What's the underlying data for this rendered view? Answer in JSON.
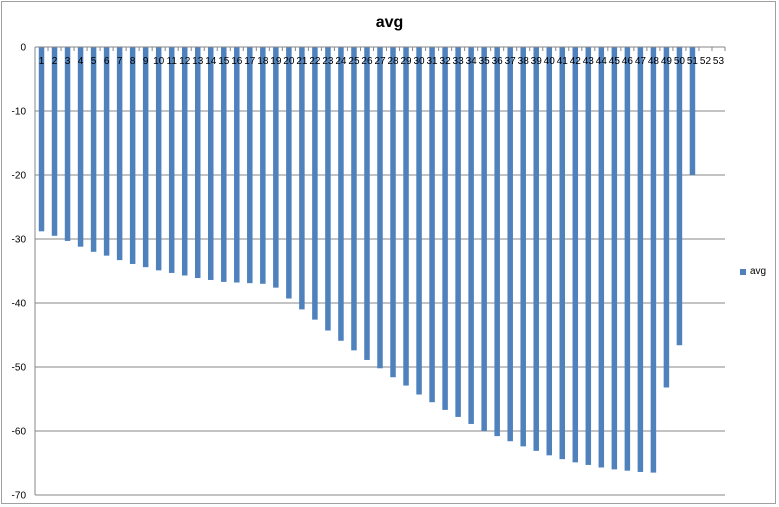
{
  "chart_data": {
    "type": "bar",
    "title": "avg",
    "categories": [
      "1",
      "2",
      "3",
      "4",
      "5",
      "6",
      "7",
      "8",
      "9",
      "10",
      "11",
      "12",
      "13",
      "14",
      "15",
      "16",
      "17",
      "18",
      "19",
      "20",
      "21",
      "22",
      "23",
      "24",
      "25",
      "26",
      "27",
      "28",
      "29",
      "30",
      "31",
      "32",
      "33",
      "34",
      "35",
      "36",
      "37",
      "38",
      "39",
      "40",
      "41",
      "42",
      "43",
      "44",
      "45",
      "46",
      "47",
      "48",
      "49",
      "50",
      "51",
      "52",
      "53"
    ],
    "series": [
      {
        "name": "avg",
        "values": [
          -28.8,
          -29.5,
          -30.3,
          -31.2,
          -32.0,
          -32.6,
          -33.3,
          -33.9,
          -34.4,
          -34.9,
          -35.3,
          -35.7,
          -36.1,
          -36.4,
          -36.7,
          -36.8,
          -36.9,
          -37.0,
          -37.6,
          -39.3,
          -41.0,
          -42.6,
          -44.3,
          -45.9,
          -47.4,
          -48.9,
          -50.2,
          -51.6,
          -52.9,
          -54.3,
          -55.5,
          -56.7,
          -57.8,
          -58.9,
          -60.0,
          -60.8,
          -61.6,
          -62.4,
          -63.1,
          -63.8,
          -64.4,
          -64.9,
          -65.3,
          -65.7,
          -66.0,
          -66.2,
          -66.4,
          -66.5,
          -53.2,
          -46.6,
          -20.0,
          null,
          null
        ]
      }
    ],
    "ylim": [
      -70,
      0
    ],
    "yticks": [
      "0",
      "-10",
      "-20",
      "-30",
      "-40",
      "-50",
      "-60",
      "-70"
    ],
    "color": "#4f81bd",
    "grid": true,
    "legend": "right"
  }
}
